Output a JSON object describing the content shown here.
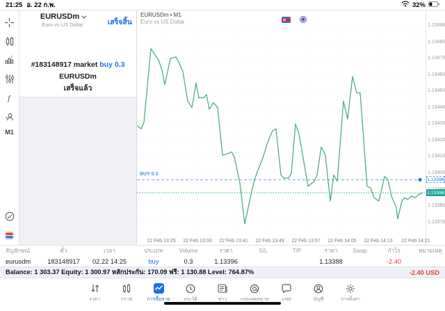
{
  "status_bar": {
    "time": "21:25",
    "date": "อ. 22 ก.พ.",
    "battery": "32%"
  },
  "sidebar": {
    "timeframe": "M1"
  },
  "order_panel": {
    "symbol": "EURUSDm",
    "symbol_desc": "Euro vs US Dollar",
    "done_label": "เสร็จสิ้น",
    "result_line1_prefix": "#183148917 market ",
    "result_line1_highlight": "buy 0.3",
    "result_line2": "EURUSDm",
    "result_line3": "เสร็จแล้ว"
  },
  "chart": {
    "title": "EURUSDm • M1",
    "subtitle": "Euro vs US Dollar",
    "buy_label": "BUY 0.3",
    "buy_badge": "1.13396",
    "bid_badge": "1.13388",
    "hidden_tick": "1.13390"
  },
  "chart_data": {
    "type": "line",
    "title": "EURUSDm M1 bid line",
    "x_axis_labels": [
      "22 Feb 13:25",
      "22 Feb 13:33",
      "22 Feb 13:41",
      "22 Feb 13:49",
      "22 Feb 13:57",
      "22 Feb 14:05",
      "22 Feb 14:13",
      "22 Feb 14:21"
    ],
    "y_axis_ticks": [
      1.1349,
      1.1348,
      1.1347,
      1.1346,
      1.1345,
      1.1344,
      1.1343,
      1.1342,
      1.1341,
      1.134,
      1.1339,
      1.1338,
      1.1337
    ],
    "y_range": [
      1.13358,
      1.13494
    ],
    "grid": "dotted",
    "buy_line": {
      "label": "BUY 0.3",
      "price": 1.13396
    },
    "current_bid": 1.13388,
    "line_color": "#4caf7d",
    "series": [
      {
        "name": "EURUSDm",
        "points": [
          [
            197,
            1.13429
          ],
          [
            203,
            1.13427
          ],
          [
            207,
            1.13431
          ],
          [
            217,
            1.13476
          ],
          [
            228,
            1.13469
          ],
          [
            233,
            1.13463
          ],
          [
            237,
            1.13454
          ],
          [
            245,
            1.1347
          ],
          [
            253,
            1.13471
          ],
          [
            258,
            1.13467
          ],
          [
            263,
            1.13462
          ],
          [
            270,
            1.13444
          ],
          [
            276,
            1.1344
          ],
          [
            282,
            1.13455
          ],
          [
            286,
            1.13446
          ],
          [
            293,
            1.13446
          ],
          [
            297,
            1.13448
          ],
          [
            301,
            1.13439
          ],
          [
            307,
            1.13443
          ],
          [
            313,
            1.1344
          ],
          [
            320,
            1.13411
          ],
          [
            328,
            1.13412
          ],
          [
            333,
            1.13413
          ],
          [
            337,
            1.1341
          ],
          [
            345,
            1.13394
          ],
          [
            352,
            1.13369
          ],
          [
            360,
            1.13385
          ],
          [
            366,
            1.13396
          ],
          [
            372,
            1.13403
          ],
          [
            377,
            1.13408
          ],
          [
            385,
            1.13419
          ],
          [
            392,
            1.13426
          ],
          [
            397,
            1.13427
          ],
          [
            404,
            1.13399
          ],
          [
            408,
            1.13397
          ],
          [
            415,
            1.13397
          ],
          [
            419,
            1.134
          ],
          [
            425,
            1.1343
          ],
          [
            430,
            1.13424
          ],
          [
            443,
            1.13392
          ],
          [
            452,
            1.13395
          ],
          [
            456,
            1.13399
          ],
          [
            462,
            1.13416
          ],
          [
            468,
            1.13411
          ],
          [
            475,
            1.13383
          ],
          [
            480,
            1.13399
          ],
          [
            485,
            1.13395
          ],
          [
            494,
            1.13444
          ],
          [
            500,
            1.13433
          ],
          [
            507,
            1.13459
          ],
          [
            513,
            1.13449
          ],
          [
            518,
            1.13449
          ],
          [
            528,
            1.13392
          ],
          [
            533,
            1.13391
          ],
          [
            538,
            1.13385
          ],
          [
            545,
            1.13383
          ],
          [
            553,
            1.13398
          ],
          [
            558,
            1.13396
          ],
          [
            563,
            1.13386
          ],
          [
            570,
            1.13379
          ],
          [
            572,
            1.13372
          ],
          [
            578,
            1.13383
          ],
          [
            582,
            1.13385
          ],
          [
            586,
            1.13384
          ],
          [
            592,
            1.13386
          ],
          [
            597,
            1.13385
          ],
          [
            602,
            1.13387
          ],
          [
            608,
            1.13388
          ]
        ]
      }
    ]
  },
  "positions_table": {
    "headers": [
      "สัญลักษณ์",
      "ตั๋ว",
      "เวลา",
      "ประเภท",
      "Volume",
      "ราคา",
      "S/L",
      "T/P",
      "ราคา",
      "Swap",
      "กำไร",
      "หมายเหตุ"
    ],
    "row": [
      "eurusdm",
      "183148917",
      "02.22 14:25",
      "buy",
      "0.3",
      "1.13396",
      "",
      "",
      "1.13388",
      "",
      "-2.40",
      ""
    ]
  },
  "balance_bar": {
    "text": "Balance: 1 303.37 Equity: 1 300.97 หลักประกัน: 170.09 ฟรี: 1 130.88 Level: 764.87%",
    "profit": "-2.40  USD"
  },
  "nav": {
    "items": [
      {
        "label": "ราคา",
        "active": false
      },
      {
        "label": "กราฟ",
        "active": false
      },
      {
        "label": "การซื้อขาย",
        "active": true
      },
      {
        "label": "ประวัติ",
        "active": false
      },
      {
        "label": "ข่าว",
        "active": false
      },
      {
        "label": "กล่องจดหมาย",
        "active": false
      },
      {
        "label": "แชท",
        "active": false
      },
      {
        "label": "บัญชี",
        "active": false
      },
      {
        "label": "การตั้งค่า",
        "active": false
      }
    ]
  },
  "colors": {
    "accent": "#1673de",
    "line": "#4caf7d",
    "bid_badge": "#26a69a",
    "loss": "#e0442e",
    "buy_line": "#6ba3e8"
  }
}
